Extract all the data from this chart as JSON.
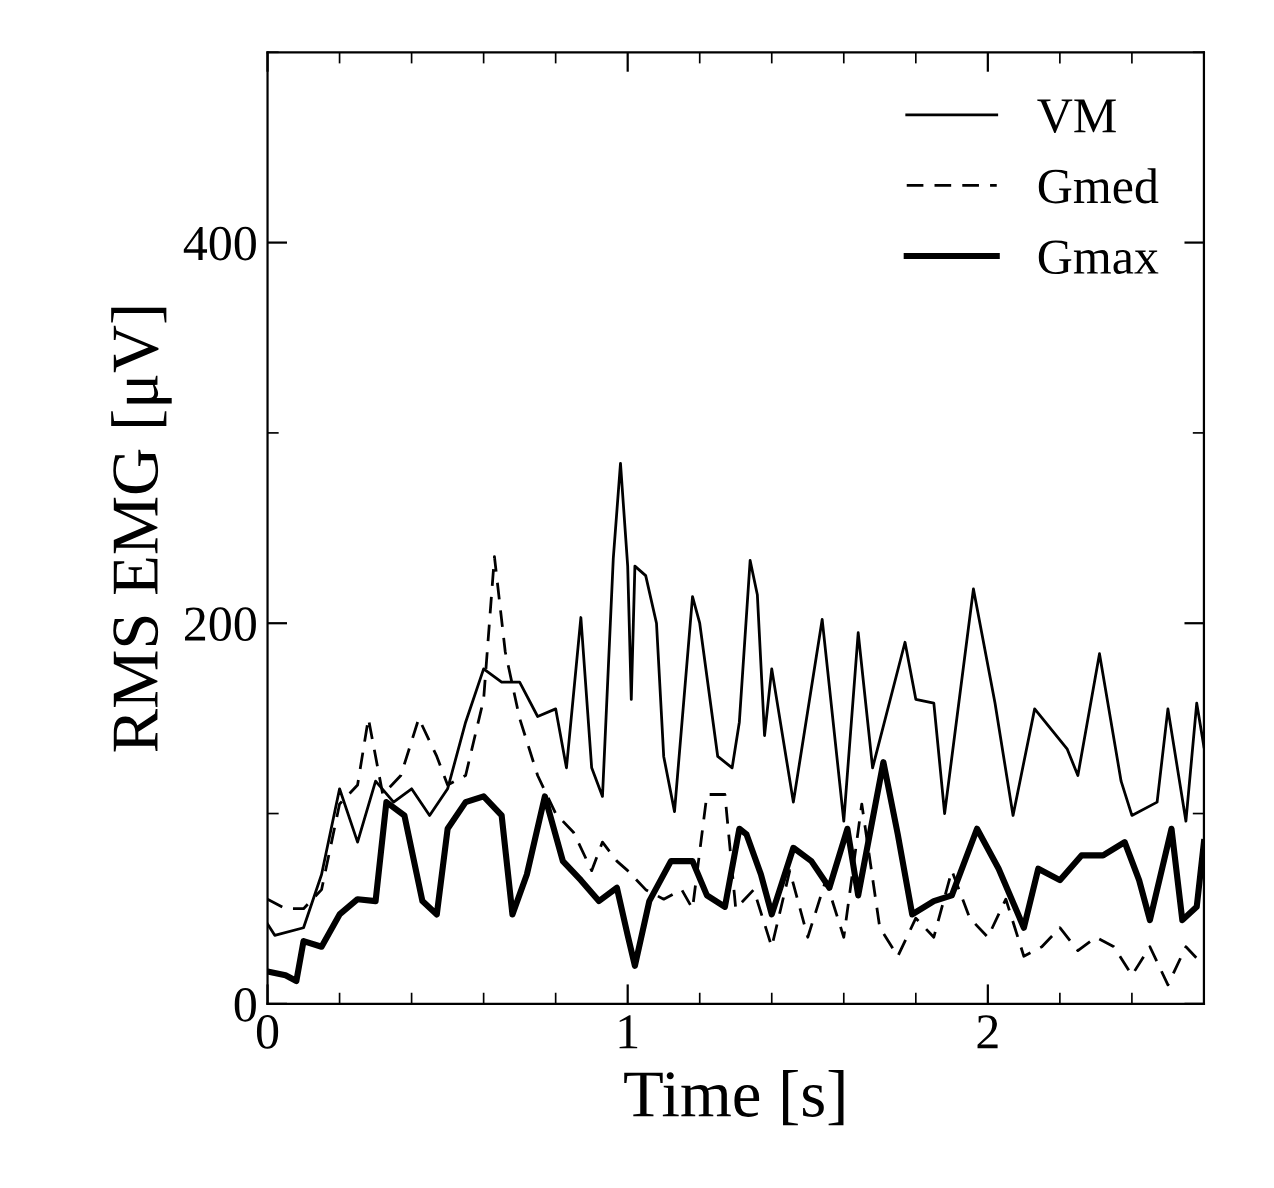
{
  "chart_data": {
    "type": "line",
    "xlabel": "Time [s]",
    "ylabel": "RMS EMG [μV]",
    "xlim": [
      0,
      2.6
    ],
    "ylim": [
      0,
      500
    ],
    "xticks": [
      0,
      1,
      2
    ],
    "yticks": [
      0,
      200,
      400
    ],
    "grid": false,
    "legend": "top right",
    "marker": "none",
    "series": [
      {
        "name": "VM",
        "color": "#000000",
        "line_style": "solid",
        "x": [
          0,
          0.02,
          0.1,
          0.15,
          0.2,
          0.25,
          0.3,
          0.35,
          0.4,
          0.45,
          0.5,
          0.55,
          0.6,
          0.65,
          0.7,
          0.75,
          0.8,
          0.83,
          0.87,
          0.9,
          0.93,
          0.96,
          0.98,
          1.0,
          1.01,
          1.02,
          1.05,
          1.08,
          1.1,
          1.13,
          1.18,
          1.2,
          1.25,
          1.29,
          1.31,
          1.34,
          1.36,
          1.38,
          1.4,
          1.46,
          1.54,
          1.6,
          1.64,
          1.68,
          1.77,
          1.8,
          1.85,
          1.88,
          1.96,
          2.02,
          2.07,
          2.13,
          2.22,
          2.25,
          2.31,
          2.37,
          2.4,
          2.47,
          2.5,
          2.55,
          2.58,
          2.6
        ],
        "values": [
          42,
          36,
          40,
          68,
          113,
          85,
          117,
          106,
          113,
          99,
          113,
          148,
          176,
          169,
          169,
          151,
          155,
          124,
          203,
          124,
          109,
          234,
          284,
          230,
          160,
          230,
          225,
          200,
          130,
          101,
          214,
          200,
          130,
          124,
          148,
          233,
          215,
          141,
          176,
          106,
          202,
          96,
          195,
          124,
          190,
          160,
          158,
          100,
          218,
          158,
          99,
          155,
          134,
          120,
          184,
          117,
          99,
          106,
          155,
          96,
          158,
          135
        ]
      },
      {
        "name": "Gmed",
        "color": "#000000",
        "line_style": "dashed",
        "x": [
          0,
          0.05,
          0.1,
          0.15,
          0.2,
          0.25,
          0.28,
          0.32,
          0.37,
          0.42,
          0.47,
          0.5,
          0.55,
          0.6,
          0.63,
          0.66,
          0.7,
          0.75,
          0.8,
          0.85,
          0.9,
          0.93,
          0.97,
          1.0,
          1.05,
          1.1,
          1.15,
          1.18,
          1.22,
          1.27,
          1.3,
          1.35,
          1.4,
          1.45,
          1.5,
          1.55,
          1.6,
          1.65,
          1.7,
          1.75,
          1.8,
          1.85,
          1.9,
          1.95,
          2.0,
          2.05,
          2.1,
          2.15,
          2.2,
          2.25,
          2.3,
          2.35,
          2.4,
          2.45,
          2.5,
          2.55,
          2.6
        ],
        "values": [
          55,
          50,
          50,
          60,
          105,
          115,
          150,
          110,
          120,
          150,
          130,
          115,
          120,
          160,
          235,
          185,
          150,
          120,
          100,
          90,
          70,
          85,
          75,
          70,
          60,
          55,
          60,
          50,
          110,
          110,
          50,
          60,
          30,
          70,
          35,
          65,
          35,
          105,
          40,
          25,
          45,
          35,
          70,
          45,
          35,
          55,
          25,
          30,
          40,
          28,
          35,
          30,
          15,
          30,
          10,
          30,
          20
        ]
      },
      {
        "name": "Gmax",
        "color": "#000000",
        "line_style": "solid",
        "x": [
          0,
          0.05,
          0.08,
          0.1,
          0.15,
          0.2,
          0.25,
          0.3,
          0.33,
          0.38,
          0.43,
          0.47,
          0.5,
          0.55,
          0.6,
          0.65,
          0.68,
          0.72,
          0.77,
          0.82,
          0.87,
          0.92,
          0.97,
          1.0,
          1.02,
          1.06,
          1.12,
          1.18,
          1.22,
          1.27,
          1.31,
          1.33,
          1.37,
          1.4,
          1.46,
          1.51,
          1.56,
          1.61,
          1.64,
          1.71,
          1.75,
          1.79,
          1.85,
          1.9,
          1.97,
          2.03,
          2.1,
          2.14,
          2.2,
          2.26,
          2.32,
          2.38,
          2.42,
          2.45,
          2.51,
          2.54,
          2.58,
          2.6
        ],
        "values": [
          17,
          15,
          12,
          33,
          30,
          47,
          55,
          54,
          106,
          99,
          54,
          47,
          92,
          106,
          109,
          99,
          47,
          68,
          109,
          75,
          65,
          54,
          61,
          36,
          20,
          54,
          75,
          75,
          57,
          51,
          92,
          89,
          68,
          47,
          82,
          75,
          61,
          92,
          57,
          127,
          89,
          47,
          54,
          57,
          92,
          71,
          40,
          71,
          65,
          78,
          78,
          85,
          65,
          44,
          92,
          44,
          51,
          85
        ]
      }
    ]
  }
}
